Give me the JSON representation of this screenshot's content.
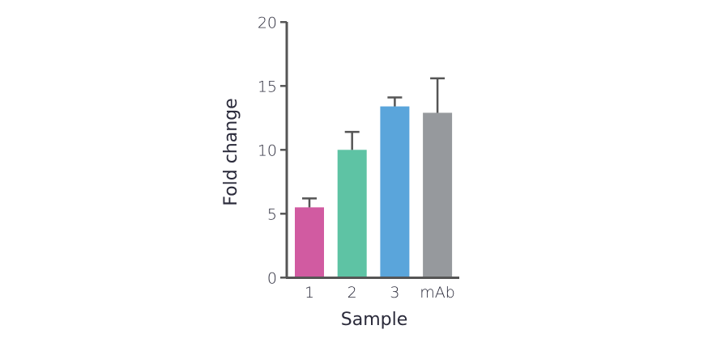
{
  "chart_data": {
    "type": "bar",
    "title": "",
    "xlabel": "Sample",
    "ylabel": "Fold change",
    "categories": [
      "1",
      "2",
      "3",
      "mAb"
    ],
    "values": [
      5.5,
      10.0,
      13.4,
      12.9
    ],
    "error_upper": [
      6.2,
      11.4,
      14.1,
      15.6
    ],
    "colors": [
      "#d15ba1",
      "#5ec3a4",
      "#5aa5db",
      "#96999d"
    ],
    "ylim": [
      0,
      20
    ],
    "yticks": [
      0,
      5,
      10,
      15,
      20
    ],
    "grid": false,
    "legend": "none"
  }
}
